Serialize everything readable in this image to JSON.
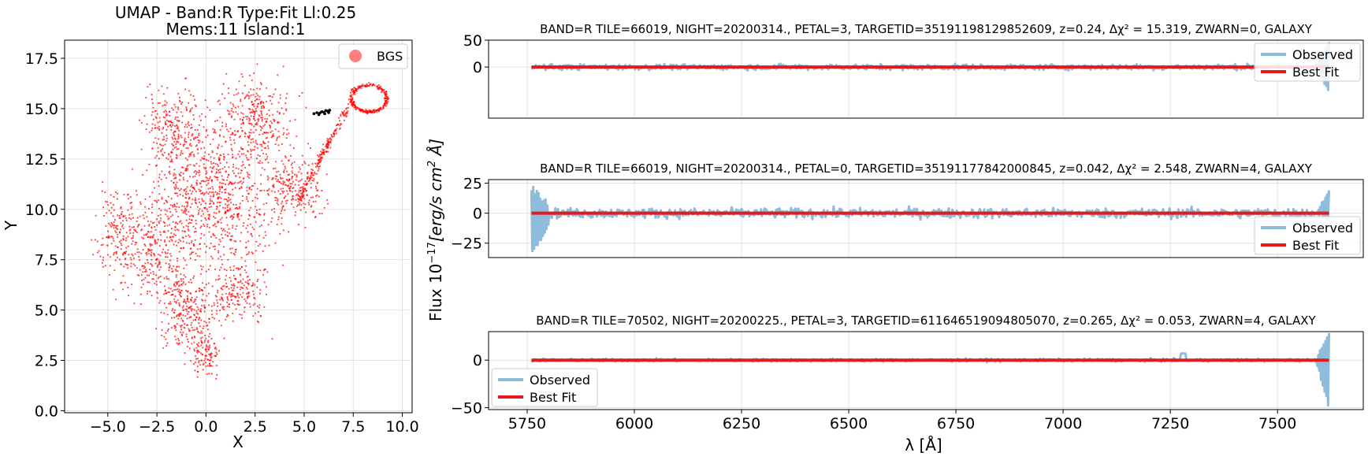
{
  "figure": {
    "ylabel_shared": "Flux 10^{-17}[erg/s cm^2 Å]",
    "ylabel_shared_parts": {
      "prefix": "Flux 10",
      "exp": "−17",
      "mid": "[erg/s cm",
      "exp2": "2",
      "suffix": " Å]"
    },
    "xlabel_shared": "λ [Å]"
  },
  "chart_data": [
    {
      "type": "scatter",
      "title": "UMAP  -  Band:R Type:Fit Ll:0.25",
      "subtitle": "Mems:11 Island:1",
      "xlabel": "X",
      "ylabel": "Y",
      "xlim": [
        -7.2,
        10.5
      ],
      "ylim": [
        -0.1,
        18.4
      ],
      "xticks": [
        -5.0,
        -2.5,
        0.0,
        2.5,
        5.0,
        7.5,
        10.0
      ],
      "xtick_labels": [
        "−5.0",
        "−2.5",
        "0.0",
        "2.5",
        "5.0",
        "7.5",
        "10.0"
      ],
      "yticks": [
        0.0,
        2.5,
        5.0,
        7.5,
        10.0,
        12.5,
        15.0,
        17.5
      ],
      "ytick_labels": [
        "0.0",
        "2.5",
        "5.0",
        "7.5",
        "10.0",
        "12.5",
        "15.0",
        "17.5"
      ],
      "grid": true,
      "legend": {
        "position": "upper-right",
        "entries": [
          "BGS"
        ]
      },
      "series": [
        {
          "name": "BGS",
          "color": "#ff0000",
          "approx_points": 6000,
          "note_extent_x": [
            -6.2,
            9.1
          ],
          "note_extent_y": [
            1.0,
            17.4
          ]
        },
        {
          "color": "#000000",
          "points": [
            [
              5.5,
              14.75
            ],
            [
              5.65,
              14.8
            ],
            [
              5.8,
              14.78
            ],
            [
              5.9,
              14.85
            ],
            [
              6.0,
              14.82
            ],
            [
              6.1,
              14.9
            ],
            [
              6.2,
              14.88
            ],
            [
              6.3,
              14.92
            ],
            [
              5.75,
              14.7
            ],
            [
              6.05,
              14.75
            ],
            [
              6.25,
              14.8
            ]
          ]
        }
      ]
    },
    {
      "type": "line",
      "title": "BAND=R TILE=66019, NIGHT=20200314., PETAL=3, TARGETID=35191198129852609, z=0.24, Δχ² = 15.319, ZWARN=0, GALAXY",
      "xlim": [
        5660,
        7700
      ],
      "ylim": [
        -95,
        50
      ],
      "yticks": [
        0,
        50
      ],
      "ytick_labels": [
        "0",
        "50"
      ],
      "grid": true,
      "legend": {
        "position": "upper-right",
        "entries": [
          "Observed",
          "Best Fit"
        ]
      },
      "series": [
        {
          "name": "Observed",
          "color": "#8fbcdb",
          "x_range": [
            5760,
            7620
          ],
          "noise_amp": 5,
          "edge_spike": [
            -45,
            45
          ]
        },
        {
          "name": "Best Fit",
          "color": "#e41a1c",
          "x_range": [
            5760,
            7620
          ],
          "value": 0
        }
      ]
    },
    {
      "type": "line",
      "title": "BAND=R TILE=66019, NIGHT=20200314., PETAL=0, TARGETID=35191177842000845, z=0.042, Δχ² = 2.548, ZWARN=4, GALAXY",
      "xlim": [
        5660,
        7700
      ],
      "ylim": [
        -37,
        28
      ],
      "yticks": [
        -25,
        0,
        25
      ],
      "ytick_labels": [
        "−25",
        "0",
        "25"
      ],
      "grid": true,
      "legend": {
        "position": "lower-right",
        "entries": [
          "Observed",
          "Best Fit"
        ]
      },
      "series": [
        {
          "name": "Observed",
          "color": "#8fbcdb",
          "x_range": [
            5760,
            7620
          ],
          "noise_amp": 4,
          "left_spike": [
            -32,
            22
          ],
          "edge_spike": [
            -5,
            18
          ]
        },
        {
          "name": "Best Fit",
          "color": "#e41a1c",
          "x_range": [
            5760,
            7620
          ],
          "value": 0
        }
      ]
    },
    {
      "type": "line",
      "title": "BAND=R TILE=70502, NIGHT=20200225., PETAL=3, TARGETID=611646519094805070, z=0.265, Δχ² = 0.053, ZWARN=4, GALAXY",
      "xlim": [
        5660,
        7700
      ],
      "ylim": [
        -52,
        30
      ],
      "xticks": [
        5750,
        6000,
        6250,
        6500,
        6750,
        7000,
        7250,
        7500
      ],
      "xtick_labels": [
        "5750",
        "6000",
        "6250",
        "6500",
        "6750",
        "7000",
        "7250",
        "7500"
      ],
      "yticks": [
        -50,
        0
      ],
      "ytick_labels": [
        "−50",
        "0"
      ],
      "grid": true,
      "legend": {
        "position": "lower-left",
        "entries": [
          "Observed",
          "Best Fit"
        ]
      },
      "series": [
        {
          "name": "Observed",
          "color": "#8fbcdb",
          "x_range": [
            5760,
            7620
          ],
          "noise_amp": 1.5,
          "edge_spike": [
            -50,
            28
          ],
          "bump": [
            7280,
            7
          ]
        },
        {
          "name": "Best Fit",
          "color": "#e41a1c",
          "x_range": [
            5760,
            7620
          ],
          "value": 0
        }
      ]
    }
  ]
}
